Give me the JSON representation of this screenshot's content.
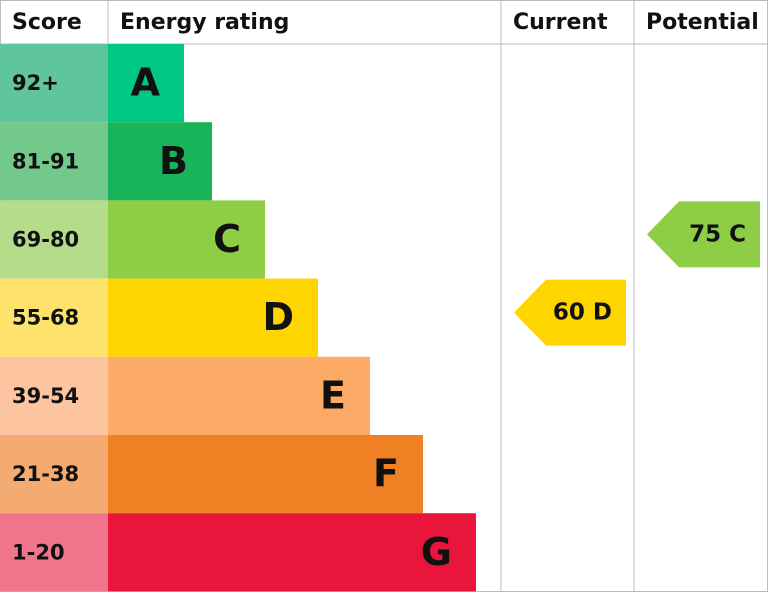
{
  "header": {
    "score": "Score",
    "energy": "Energy rating",
    "current": "Current",
    "potential": "Potential"
  },
  "bands": [
    {
      "range": "92+",
      "rating": "A",
      "color": "#00c781",
      "light": "#5ec59f"
    },
    {
      "range": "81-91",
      "rating": "B",
      "color": "#19b459",
      "light": "#73c98b"
    },
    {
      "range": "69-80",
      "rating": "C",
      "color": "#8dce46",
      "light": "#b5dc8a"
    },
    {
      "range": "55-68",
      "rating": "D",
      "color": "#ffd500",
      "light": "#fde36b"
    },
    {
      "range": "39-54",
      "rating": "E",
      "color": "#fcaa65",
      "light": "#fdc59f"
    },
    {
      "range": "21-38",
      "rating": "F",
      "color": "#ef8023",
      "light": "#f4ab72"
    },
    {
      "range": "1-20",
      "rating": "G",
      "color": "#e9153b",
      "light": "#f0748a"
    }
  ],
  "current": {
    "score": 60,
    "rating": "D"
  },
  "potential": {
    "score": 75,
    "rating": "C"
  }
}
